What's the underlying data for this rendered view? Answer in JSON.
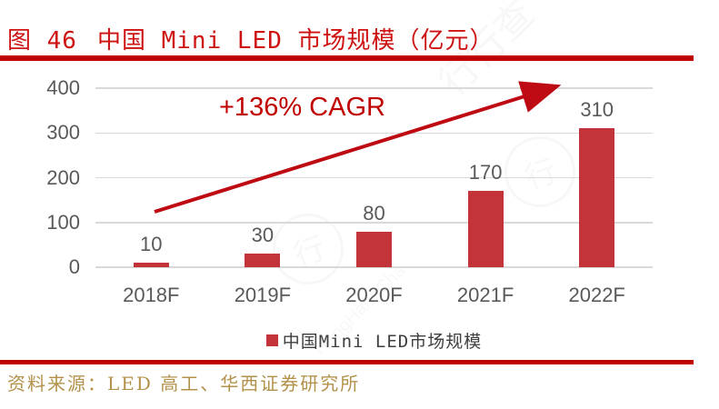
{
  "title": {
    "prefix": "图 46",
    "text": "中国 Mini LED 市场规模（亿元）"
  },
  "annotation": {
    "cagr_label": "+136% CAGR"
  },
  "legend": {
    "label": "中国Mini LED市场规模",
    "marker_color": "#C2343A"
  },
  "source": {
    "text": "资料来源：LED 高工、华西证券研究所"
  },
  "watermark": {
    "brand": "行行查",
    "latin": "HangHangCha"
  },
  "colors": {
    "title_red": "#CE1212",
    "rule_red": "#C00000",
    "bar_red": "#C2343A",
    "arrow_red": "#BE0A12",
    "axis_text": "#595959",
    "gridline": "#D9D9D9",
    "source_gold": "#B3914A"
  },
  "chart_data": {
    "type": "bar",
    "title": "中国 Mini LED 市场规模（亿元）",
    "categories": [
      "2018F",
      "2019F",
      "2020F",
      "2021F",
      "2022F"
    ],
    "values": [
      10,
      30,
      80,
      170,
      310
    ],
    "series_name": "中国Mini LED市场规模",
    "xlabel": "",
    "ylabel": "",
    "ylim": [
      0,
      400
    ],
    "ytick_step": 100,
    "yticks": [
      0,
      100,
      200,
      300,
      400
    ],
    "grid": true,
    "legend_position": "bottom",
    "annotation": "+136% CAGR"
  }
}
